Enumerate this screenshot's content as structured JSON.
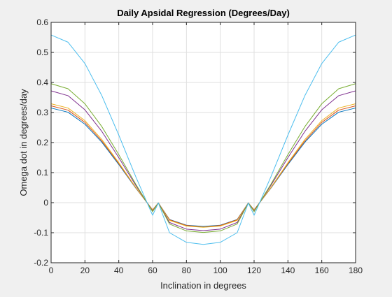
{
  "chart_data": {
    "type": "line",
    "title": "Daily Apsidal Regression (Degrees/Day)",
    "xlabel": "Inclination in degrees",
    "ylabel": "Omega dot in degrees/day",
    "xlim": [
      0,
      180
    ],
    "ylim": [
      -0.2,
      0.6
    ],
    "xticks": [
      0,
      20,
      40,
      60,
      80,
      100,
      120,
      140,
      160,
      180
    ],
    "yticks": [
      -0.2,
      -0.1,
      0,
      0.1,
      0.2,
      0.3,
      0.4,
      0.5,
      0.6
    ],
    "grid": true,
    "x": [
      0,
      10,
      20,
      30,
      40,
      50,
      60,
      63.4,
      70,
      80,
      90,
      100,
      110,
      116.6,
      120,
      130,
      140,
      150,
      160,
      170,
      180
    ],
    "series": [
      {
        "color": "#0072bd",
        "values": [
          0.315,
          0.301,
          0.261,
          0.201,
          0.127,
          0.049,
          -0.024,
          -0.001,
          -0.056,
          -0.075,
          -0.079,
          -0.075,
          -0.056,
          -0.001,
          -0.024,
          0.049,
          0.127,
          0.201,
          0.261,
          0.301,
          0.315
        ]
      },
      {
        "color": "#d95319",
        "values": [
          0.322,
          0.308,
          0.267,
          0.205,
          0.13,
          0.05,
          -0.024,
          -0.001,
          -0.057,
          -0.076,
          -0.081,
          -0.076,
          -0.057,
          -0.001,
          -0.024,
          0.05,
          0.13,
          0.205,
          0.267,
          0.308,
          0.322
        ]
      },
      {
        "color": "#edb120",
        "values": [
          0.329,
          0.315,
          0.273,
          0.21,
          0.133,
          0.051,
          -0.025,
          -0.001,
          -0.059,
          -0.078,
          -0.082,
          -0.078,
          -0.059,
          -0.001,
          -0.025,
          0.051,
          0.133,
          0.21,
          0.273,
          0.315,
          0.329
        ]
      },
      {
        "color": "#7e2f8e",
        "values": [
          0.372,
          0.356,
          0.309,
          0.237,
          0.15,
          0.058,
          -0.028,
          -0.001,
          -0.066,
          -0.088,
          -0.093,
          -0.088,
          -0.066,
          -0.001,
          -0.028,
          0.058,
          0.15,
          0.237,
          0.309,
          0.356,
          0.372
        ]
      },
      {
        "color": "#77ac30",
        "values": [
          0.396,
          0.379,
          0.329,
          0.253,
          0.16,
          0.062,
          -0.03,
          -0.001,
          -0.071,
          -0.094,
          -0.099,
          -0.094,
          -0.071,
          -0.001,
          -0.03,
          0.062,
          0.16,
          0.253,
          0.329,
          0.379,
          0.396
        ]
      },
      {
        "color": "#4dbeee",
        "values": [
          0.558,
          0.534,
          0.463,
          0.356,
          0.225,
          0.087,
          -0.042,
          -0.001,
          -0.1,
          -0.132,
          -0.139,
          -0.132,
          -0.1,
          -0.001,
          -0.042,
          0.087,
          0.225,
          0.356,
          0.463,
          0.534,
          0.558
        ]
      }
    ]
  }
}
